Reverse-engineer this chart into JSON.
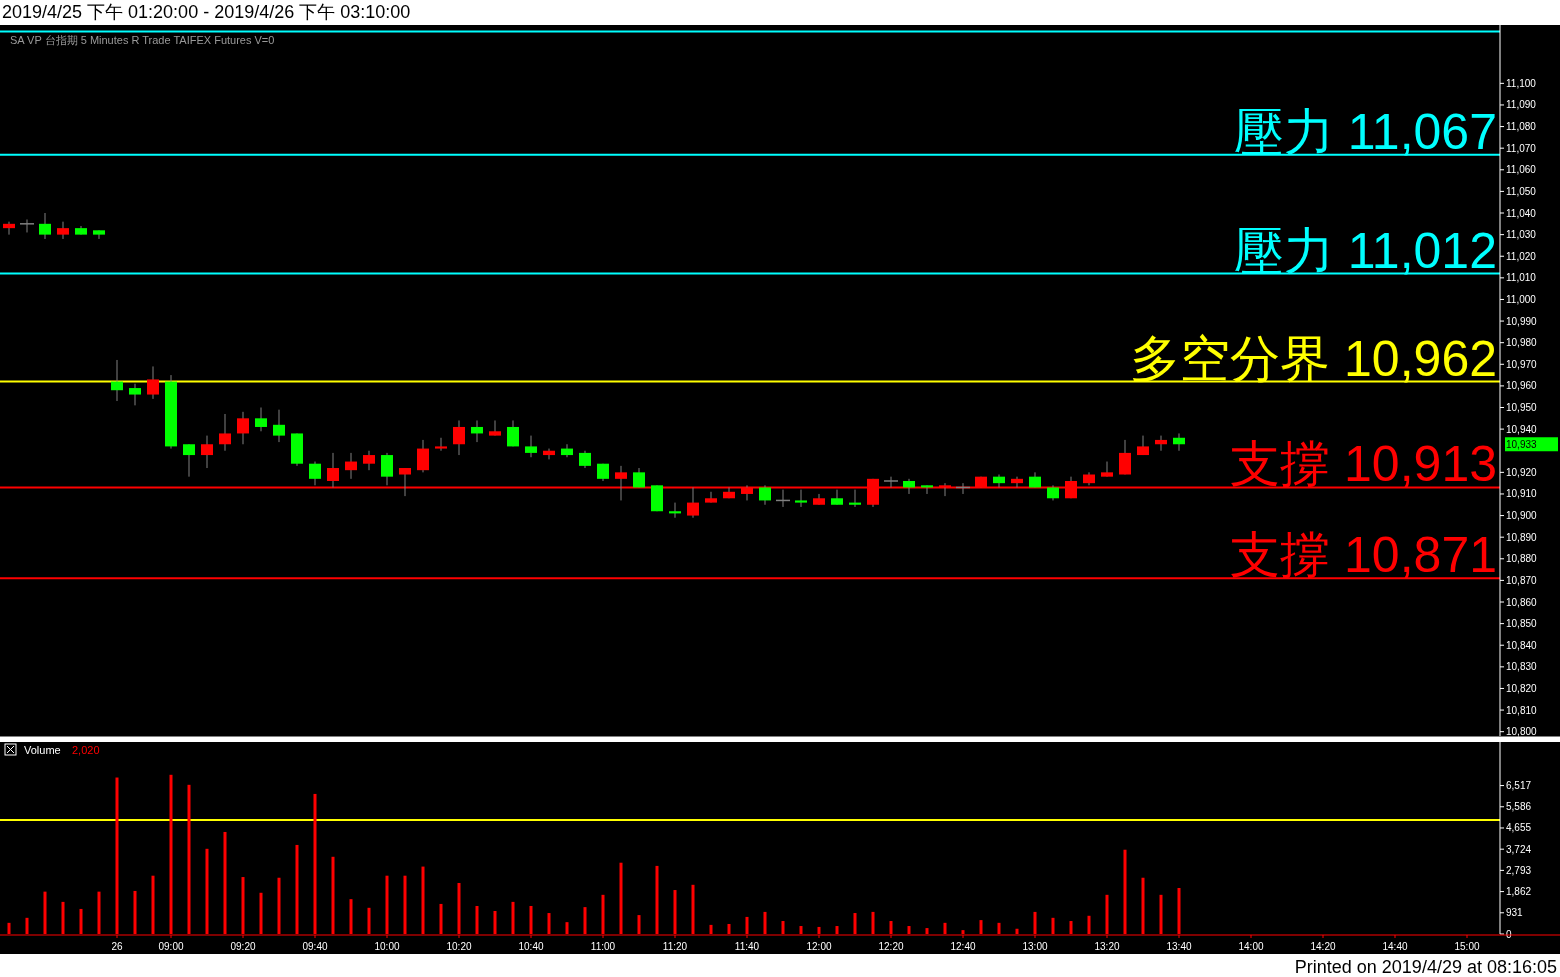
{
  "chart_data": [
    {
      "type": "candlestick",
      "title": "2019/4/25 下午 01:20:00 - 2019/4/26 下午 03:10:00",
      "subtitle": "SA VP 台指期 5 Minutes R Trade TAIFEX Futures V=0",
      "ohlc": [
        [
          11033,
          11036,
          11030,
          11035
        ],
        [
          11035,
          11037,
          11031,
          11035
        ],
        [
          11035,
          11040,
          11028,
          11030
        ],
        [
          11030,
          11036,
          11028,
          11033
        ],
        [
          11033,
          11034,
          11030,
          11030
        ],
        [
          11032,
          11032,
          11028,
          11030
        ],
        [
          10962,
          10972,
          10953,
          10958
        ],
        [
          10959,
          10961,
          10951,
          10956
        ],
        [
          10956,
          10969,
          10954,
          10963
        ],
        [
          10962,
          10965,
          10931,
          10932
        ],
        [
          10933,
          10933,
          10918,
          10928
        ],
        [
          10928,
          10937,
          10922,
          10933
        ],
        [
          10933,
          10947,
          10930,
          10938
        ],
        [
          10938,
          10948,
          10933,
          10945
        ],
        [
          10945,
          10950,
          10939,
          10941
        ],
        [
          10942,
          10949,
          10934,
          10937
        ],
        [
          10938,
          10938,
          10923,
          10924
        ],
        [
          10924,
          10925,
          10914,
          10917
        ],
        [
          10916,
          10929,
          10913,
          10922
        ],
        [
          10921,
          10929,
          10917,
          10925
        ],
        [
          10924,
          10930,
          10921,
          10928
        ],
        [
          10928,
          10929,
          10914,
          10918
        ],
        [
          10919,
          10922,
          10909,
          10922
        ],
        [
          10921,
          10935,
          10920,
          10931
        ],
        [
          10931,
          10936,
          10930,
          10932
        ],
        [
          10933,
          10944,
          10928,
          10941
        ],
        [
          10941,
          10944,
          10934,
          10938
        ],
        [
          10937,
          10944,
          10937,
          10939
        ],
        [
          10941,
          10944,
          10932,
          10932
        ],
        [
          10932,
          10937,
          10927,
          10929
        ],
        [
          10928,
          10931,
          10926,
          10930
        ],
        [
          10931,
          10933,
          10927,
          10928
        ],
        [
          10929,
          10930,
          10922,
          10923
        ],
        [
          10924,
          10924,
          10916,
          10917
        ],
        [
          10917,
          10923,
          10907,
          10920
        ],
        [
          10920,
          10922,
          10913,
          10913
        ],
        [
          10914,
          10914,
          10902,
          10902
        ],
        [
          10902,
          10906,
          10899,
          10901
        ],
        [
          10900,
          10913,
          10899,
          10906
        ],
        [
          10906,
          10911,
          10906,
          10908
        ],
        [
          10908,
          10913,
          10908,
          10911
        ],
        [
          10910,
          10914,
          10907,
          10913
        ],
        [
          10913,
          10914,
          10905,
          10907
        ],
        [
          10907,
          10912,
          10904,
          10907
        ],
        [
          10907,
          10912,
          10904,
          10906
        ],
        [
          10905,
          10910,
          10905,
          10908
        ],
        [
          10908,
          10912,
          10905,
          10905
        ],
        [
          10906,
          10912,
          10904,
          10905
        ],
        [
          10905,
          10917,
          10904,
          10917
        ],
        [
          10916,
          10918,
          10913,
          10916
        ],
        [
          10916,
          10917,
          10910,
          10913
        ],
        [
          10914,
          10914,
          10910,
          10913
        ],
        [
          10913,
          10915,
          10909,
          10914
        ],
        [
          10913,
          10915,
          10910,
          10913
        ],
        [
          10913,
          10918,
          10913,
          10918
        ],
        [
          10918,
          10919,
          10913,
          10915
        ],
        [
          10915,
          10918,
          10913,
          10917
        ],
        [
          10918,
          10920,
          10913,
          10913
        ],
        [
          10913,
          10914,
          10907,
          10908
        ],
        [
          10908,
          10918,
          10908,
          10916
        ],
        [
          10915,
          10920,
          10914,
          10919
        ],
        [
          10918,
          10925,
          10918,
          10920
        ],
        [
          10919,
          10935,
          10919,
          10929
        ],
        [
          10928,
          10937,
          10928,
          10932
        ],
        [
          10933,
          10937,
          10930,
          10935
        ],
        [
          10936,
          10938,
          10930,
          10933
        ],
        null,
        null,
        null,
        null,
        null,
        null,
        null,
        null,
        null,
        null,
        null,
        null,
        null,
        null,
        null,
        null
      ],
      "colors": [
        "#ff0000",
        "#808080",
        "#00ff00",
        "#ff0000",
        "#00ff00",
        "#00ff00",
        "#00ff00",
        "#00ff00",
        "#ff0000",
        "#00ff00",
        "#00ff00",
        "#ff0000",
        "#ff0000",
        "#ff0000",
        "#00ff00",
        "#00ff00",
        "#00ff00",
        "#00ff00",
        "#ff0000",
        "#ff0000",
        "#ff0000",
        "#00ff00",
        "#ff0000",
        "#ff0000",
        "#ff0000",
        "#ff0000",
        "#00ff00",
        "#ff0000",
        "#00ff00",
        "#00ff00",
        "#ff0000",
        "#00ff00",
        "#00ff00",
        "#00ff00",
        "#ff0000",
        "#00ff00",
        "#00ff00",
        "#00ff00",
        "#ff0000",
        "#ff0000",
        "#ff0000",
        "#ff0000",
        "#00ff00",
        "#808080",
        "#00ff00",
        "#ff0000",
        "#00ff00",
        "#00ff00",
        "#ff0000",
        "#808080",
        "#00ff00",
        "#00ff00",
        "#ff0000",
        "#808080",
        "#ff0000",
        "#00ff00",
        "#ff0000",
        "#00ff00",
        "#00ff00",
        "#ff0000",
        "#ff0000",
        "#ff0000",
        "#ff0000",
        "#ff0000",
        "#ff0000",
        "#00ff00",
        null,
        null,
        null,
        null,
        null,
        null,
        null,
        null,
        null,
        null,
        null,
        null,
        null,
        null,
        null,
        null
      ],
      "ylim": [
        10798,
        11127
      ],
      "yticks": [
        {
          "value": 10800,
          "label": "10,800"
        },
        {
          "value": 10810,
          "label": "10,810"
        },
        {
          "value": 10820,
          "label": "10,820"
        },
        {
          "value": 10830,
          "label": "10,830"
        },
        {
          "value": 10840,
          "label": "10,840"
        },
        {
          "value": 10850,
          "label": "10,850"
        },
        {
          "value": 10860,
          "label": "10,860"
        },
        {
          "value": 10870,
          "label": "10,870"
        },
        {
          "value": 10880,
          "label": "10,880"
        },
        {
          "value": 10890,
          "label": "10,890"
        },
        {
          "value": 10900,
          "label": "10,900"
        },
        {
          "value": 10910,
          "label": "10,910"
        },
        {
          "value": 10920,
          "label": "10,920"
        },
        {
          "value": 10940,
          "label": "10,940"
        },
        {
          "value": 10950,
          "label": "10,950"
        },
        {
          "value": 10960,
          "label": "10,960"
        },
        {
          "value": 10970,
          "label": "10,970"
        },
        {
          "value": 10980,
          "label": "10,980"
        },
        {
          "value": 10990,
          "label": "10,990"
        },
        {
          "value": 11000,
          "label": "11,000"
        },
        {
          "value": 11010,
          "label": "11,010"
        },
        {
          "value": 11020,
          "label": "11,020"
        },
        {
          "value": 11030,
          "label": "11,030"
        },
        {
          "value": 11040,
          "label": "11,040"
        },
        {
          "value": 11050,
          "label": "11,050"
        },
        {
          "value": 11060,
          "label": "11,060"
        },
        {
          "value": 11070,
          "label": "11,070"
        },
        {
          "value": 11080,
          "label": "11,080"
        },
        {
          "value": 11090,
          "label": "11,090"
        },
        {
          "value": 11100,
          "label": "11,100"
        }
      ],
      "ref_lines": [
        {
          "axis": "y",
          "value": 11124,
          "color": "#00ffff"
        },
        {
          "axis": "y",
          "value": 11067,
          "label": "壓力 11,067",
          "color": "#00ffff"
        },
        {
          "axis": "y",
          "value": 11012,
          "label": "壓力 11,012",
          "color": "#00ffff"
        },
        {
          "axis": "y",
          "value": 10962,
          "label": "多空分界 10,962",
          "color": "#ffff00"
        },
        {
          "axis": "y",
          "value": 10913,
          "label": "支撐 10,913",
          "color": "#ff0000"
        },
        {
          "axis": "y",
          "value": 10871,
          "label": "支撐 10,871",
          "color": "#ff0000"
        }
      ],
      "annotations": [
        "10,933",
        "Printed on 2019/4/29 at 08:16:05"
      ],
      "tick_labels": "y"
    },
    {
      "type": "bar",
      "title": "Volume",
      "color": "#ff0000",
      "categories": [
        null,
        null,
        null,
        null,
        null,
        null,
        "26",
        null,
        null,
        "09:00",
        null,
        null,
        null,
        "09:20",
        null,
        null,
        null,
        "09:40",
        null,
        null,
        null,
        "10:00",
        null,
        null,
        null,
        "10:20",
        null,
        null,
        null,
        "10:40",
        null,
        null,
        null,
        "11:00",
        null,
        null,
        null,
        "11:20",
        null,
        null,
        null,
        "11:40",
        null,
        null,
        null,
        "12:00",
        null,
        null,
        null,
        "12:20",
        null,
        null,
        null,
        "12:40",
        null,
        null,
        null,
        "13:00",
        null,
        null,
        null,
        "13:20",
        null,
        null,
        null,
        "13:40",
        null,
        null,
        null,
        "14:00",
        null,
        null,
        null,
        "14:20",
        null,
        null,
        null,
        "14:40",
        null,
        null,
        null,
        "15:00"
      ],
      "values": [
        490,
        710,
        1860,
        1410,
        1100,
        1860,
        6870,
        1890,
        2560,
        6990,
        6550,
        3740,
        4480,
        2500,
        1810,
        2470,
        3910,
        6150,
        3390,
        1530,
        1150,
        2560,
        2560,
        2960,
        1320,
        2240,
        1230,
        1010,
        1410,
        1230,
        920,
        520,
        1180,
        1720,
        3130,
        830,
        2990,
        1930,
        2160,
        400,
        440,
        750,
        970,
        570,
        350,
        310,
        350,
        920,
        970,
        570,
        350,
        260,
        490,
        170,
        610,
        490,
        230,
        970,
        710,
        570,
        800,
        1720,
        3700,
        2470,
        1720,
        2020,
        null,
        null,
        null,
        null,
        null,
        null,
        null,
        null,
        null,
        null,
        null,
        null,
        null,
        null,
        null,
        null
      ],
      "ylim": [
        0,
        8430
      ],
      "yticks": [
        0,
        {
          "value": 931,
          "label": "931"
        },
        {
          "value": 1862,
          "label": "1,862"
        },
        {
          "value": 2793,
          "label": "2,793"
        },
        {
          "value": 3724,
          "label": "3,724"
        },
        {
          "value": 4655,
          "label": "4,655"
        },
        {
          "value": 5586,
          "label": "5,586"
        },
        {
          "value": 6517,
          "label": "6,517"
        }
      ],
      "ref_lines": [
        {
          "axis": "y",
          "value": 5000,
          "color": "#ffff00"
        }
      ],
      "annotations": [
        "2,020"
      ]
    }
  ]
}
